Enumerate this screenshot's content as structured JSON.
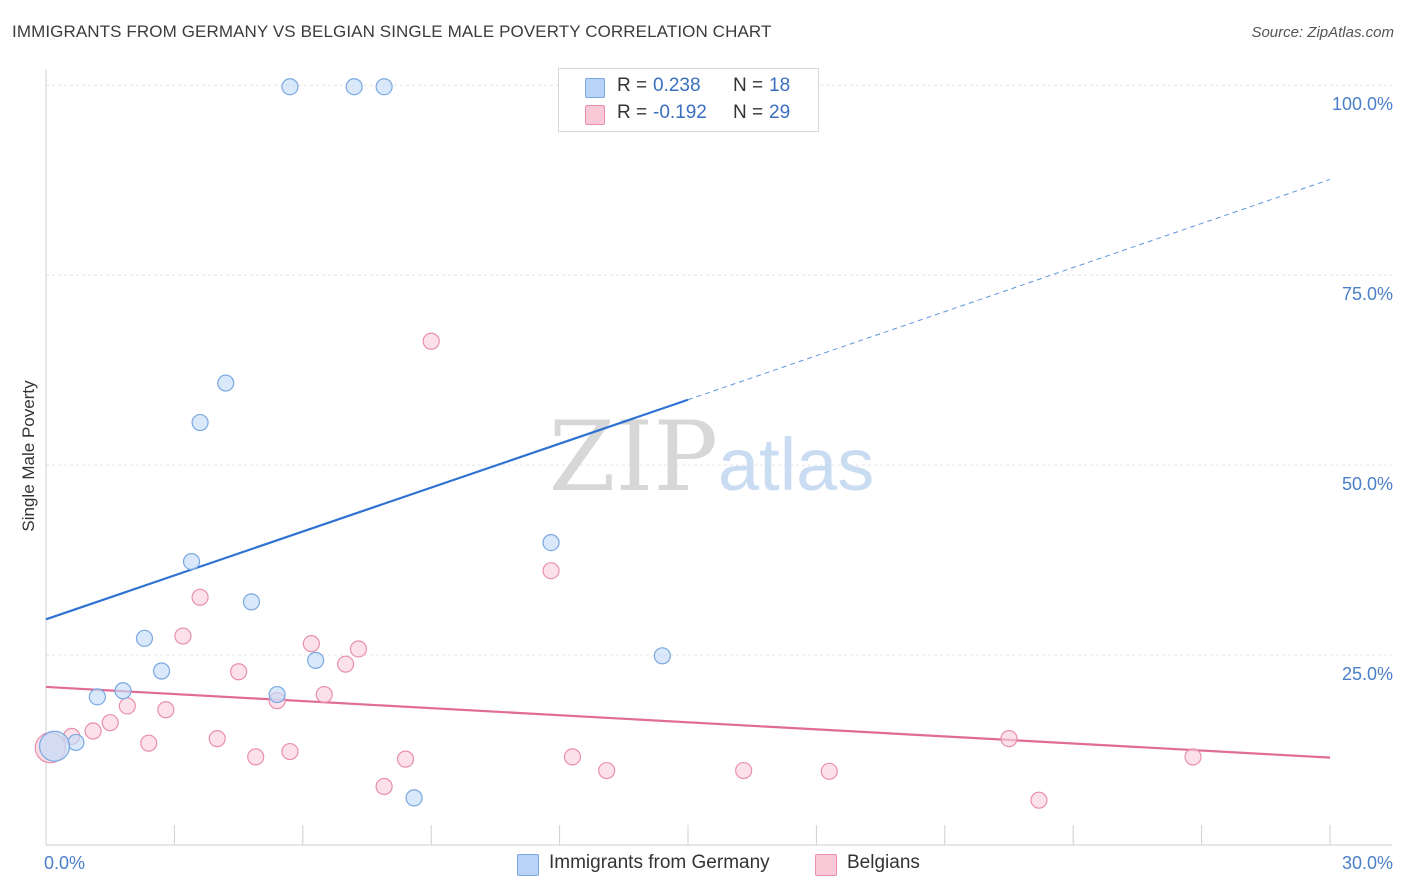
{
  "header": {
    "title": "IMMIGRANTS FROM GERMANY VS BELGIAN SINGLE MALE POVERTY CORRELATION CHART",
    "source": "Source: ZipAtlas.com"
  },
  "watermark": {
    "part1": "ZIP",
    "part2": "atlas"
  },
  "legend": {
    "rows": [
      {
        "r_label": "R =",
        "r_value": "0.238",
        "n_label": "N =",
        "n_value": "18",
        "color": "#b8d3f5",
        "border": "#7aa8e0"
      },
      {
        "r_label": "R =",
        "r_value": "-0.192",
        "n_label": "N =",
        "n_value": "29",
        "color": "#f9c9d8",
        "border": "#e890ab"
      }
    ]
  },
  "bottom_legend": [
    {
      "label": "Immigrants from Germany",
      "color": "#b8d3f5",
      "border": "#7aa8e0"
    },
    {
      "label": "Belgians",
      "color": "#f9c9d8",
      "border": "#e890ab"
    }
  ],
  "chart_data": {
    "type": "scatter",
    "title": "IMMIGRANTS FROM GERMANY VS BELGIAN SINGLE MALE POVERTY CORRELATION CHART",
    "xlabel": "",
    "ylabel": "Single Male Poverty",
    "xlim": [
      0,
      30
    ],
    "ylim": [
      0,
      102
    ],
    "x_tick_labels": [
      "0.0%",
      "30.0%"
    ],
    "y_ticks": [
      25,
      50,
      75,
      100
    ],
    "y_tick_labels": [
      "25.0%",
      "50.0%",
      "75.0%",
      "100.0%"
    ],
    "grid": true,
    "legend_position": "top-center",
    "series": [
      {
        "name": "Immigrants from Germany",
        "color": "#7aa8e0",
        "fill": "#c5dbf7",
        "points": [
          [
            5.7,
            99.8
          ],
          [
            7.2,
            99.8
          ],
          [
            7.9,
            99.8
          ],
          [
            4.2,
            60.8
          ],
          [
            3.6,
            55.6
          ],
          [
            11.8,
            39.8
          ],
          [
            3.4,
            37.3
          ],
          [
            4.8,
            32.0
          ],
          [
            2.3,
            27.2
          ],
          [
            6.3,
            24.3
          ],
          [
            14.4,
            24.9
          ],
          [
            2.7,
            22.9
          ],
          [
            1.8,
            20.3
          ],
          [
            1.2,
            19.5
          ],
          [
            5.4,
            19.8
          ],
          [
            0.7,
            13.5
          ],
          [
            0.2,
            13.0
          ],
          [
            8.6,
            6.2
          ]
        ],
        "trend": {
          "x": [
            0,
            15,
            30
          ],
          "y": [
            29.7,
            58.6,
            87.6
          ],
          "solid_until": 15
        }
      },
      {
        "name": "Belgians",
        "color": "#e890ab",
        "fill": "#fad1de",
        "points": [
          [
            9.0,
            66.3
          ],
          [
            11.8,
            36.1
          ],
          [
            3.6,
            32.6
          ],
          [
            3.2,
            27.5
          ],
          [
            6.2,
            26.5
          ],
          [
            7.3,
            25.8
          ],
          [
            7.0,
            23.8
          ],
          [
            4.5,
            22.8
          ],
          [
            6.5,
            19.8
          ],
          [
            5.4,
            19.0
          ],
          [
            1.9,
            18.3
          ],
          [
            2.8,
            17.8
          ],
          [
            1.5,
            16.1
          ],
          [
            1.1,
            15.0
          ],
          [
            0.6,
            14.3
          ],
          [
            4.0,
            14.0
          ],
          [
            2.4,
            13.4
          ],
          [
            5.7,
            12.3
          ],
          [
            4.9,
            11.6
          ],
          [
            8.4,
            11.3
          ],
          [
            12.3,
            11.6
          ],
          [
            13.1,
            9.8
          ],
          [
            16.3,
            9.8
          ],
          [
            18.3,
            9.7
          ],
          [
            22.5,
            14.0
          ],
          [
            26.8,
            11.6
          ],
          [
            7.9,
            7.7
          ],
          [
            23.2,
            5.9
          ],
          [
            0.1,
            12.8
          ]
        ],
        "trend": {
          "x": [
            0,
            30
          ],
          "y": [
            20.8,
            11.5
          ]
        }
      }
    ]
  }
}
